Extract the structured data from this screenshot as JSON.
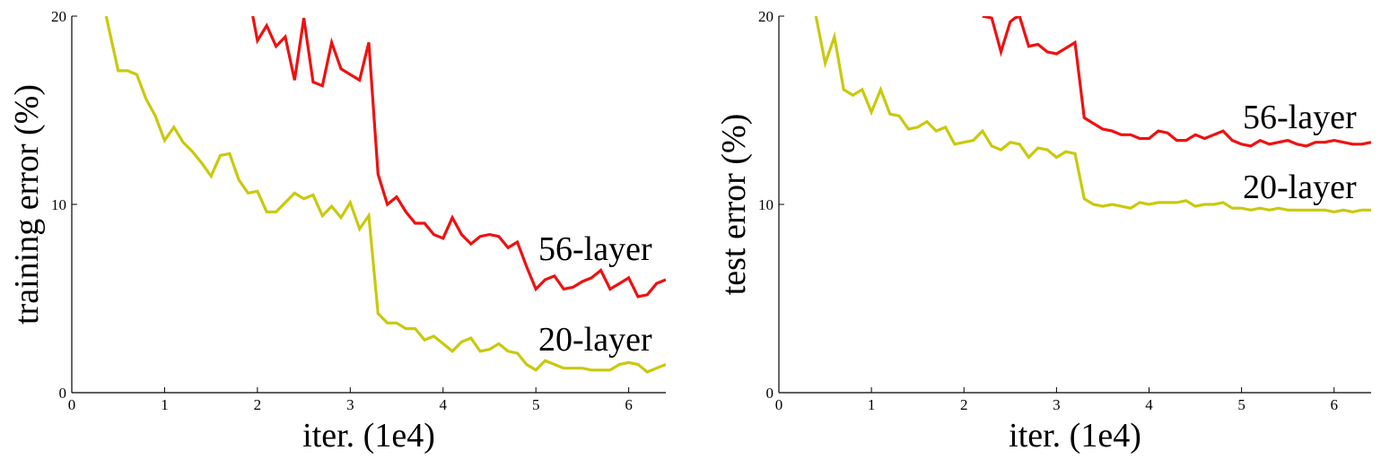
{
  "chart_data": [
    {
      "type": "line",
      "xlabel": "iter. (1e4)",
      "ylabel": "training error (%)",
      "xlim": [
        0,
        6.4
      ],
      "ylim": [
        0,
        20
      ],
      "xticks": [
        "0",
        "1",
        "2",
        "3",
        "4",
        "5",
        "6"
      ],
      "yticks": [
        "0",
        "10",
        "20"
      ],
      "grid": false,
      "series": [
        {
          "name": "56-layer",
          "color": "#ee1111",
          "x": [
            1.95,
            2.0,
            2.1,
            2.2,
            2.3,
            2.4,
            2.5,
            2.6,
            2.7,
            2.8,
            2.9,
            3.0,
            3.1,
            3.2,
            3.3,
            3.4,
            3.5,
            3.6,
            3.7,
            3.8,
            3.9,
            4.0,
            4.1,
            4.2,
            4.3,
            4.4,
            4.5,
            4.6,
            4.7,
            4.8,
            4.9,
            5.0,
            5.1,
            5.2,
            5.3,
            5.4,
            5.5,
            5.6,
            5.7,
            5.8,
            5.9,
            6.0,
            6.1,
            6.2,
            6.3,
            6.4
          ],
          "y": [
            20.0,
            18.7,
            19.5,
            18.4,
            18.9,
            16.6,
            19.9,
            16.5,
            16.3,
            18.6,
            17.2,
            16.9,
            16.6,
            18.6,
            11.6,
            10.0,
            10.4,
            9.6,
            9.0,
            9.0,
            8.4,
            8.2,
            9.3,
            8.4,
            7.9,
            8.3,
            8.4,
            8.3,
            7.7,
            8.0,
            6.7,
            5.5,
            6.0,
            6.2,
            5.5,
            5.6,
            5.9,
            6.1,
            6.5,
            5.5,
            5.8,
            6.1,
            5.1,
            5.2,
            5.8,
            6.0
          ]
        },
        {
          "name": "20-layer",
          "color": "#c9c90e",
          "x": [
            0.37,
            0.5,
            0.6,
            0.7,
            0.8,
            0.9,
            1.0,
            1.1,
            1.2,
            1.3,
            1.4,
            1.5,
            1.6,
            1.7,
            1.8,
            1.9,
            2.0,
            2.1,
            2.2,
            2.3,
            2.4,
            2.5,
            2.6,
            2.7,
            2.8,
            2.9,
            3.0,
            3.1,
            3.2,
            3.3,
            3.4,
            3.5,
            3.6,
            3.7,
            3.8,
            3.9,
            4.0,
            4.1,
            4.2,
            4.3,
            4.4,
            4.5,
            4.6,
            4.7,
            4.8,
            4.9,
            5.0,
            5.1,
            5.2,
            5.3,
            5.4,
            5.5,
            5.6,
            5.7,
            5.8,
            5.9,
            6.0,
            6.1,
            6.2,
            6.3,
            6.4
          ],
          "y": [
            20.0,
            17.1,
            17.1,
            16.9,
            15.6,
            14.7,
            13.4,
            14.1,
            13.3,
            12.8,
            12.2,
            11.5,
            12.6,
            12.7,
            11.3,
            10.6,
            10.7,
            9.6,
            9.6,
            10.1,
            10.6,
            10.3,
            10.5,
            9.4,
            9.9,
            9.3,
            10.1,
            8.7,
            9.4,
            4.2,
            3.7,
            3.7,
            3.4,
            3.4,
            2.8,
            3.0,
            2.6,
            2.2,
            2.7,
            2.9,
            2.2,
            2.3,
            2.6,
            2.2,
            2.1,
            1.5,
            1.2,
            1.7,
            1.5,
            1.3,
            1.3,
            1.3,
            1.2,
            1.2,
            1.2,
            1.5,
            1.6,
            1.5,
            1.1,
            1.3,
            1.5
          ]
        }
      ]
    },
    {
      "type": "line",
      "xlabel": "iter. (1e4)",
      "ylabel": "test error (%)",
      "xlim": [
        0,
        6.4
      ],
      "ylim": [
        0,
        20
      ],
      "xticks": [
        "0",
        "1",
        "2",
        "3",
        "4",
        "5",
        "6"
      ],
      "yticks": [
        "0",
        "10",
        "20"
      ],
      "grid": false,
      "series": [
        {
          "name": "56-layer",
          "color": "#ee1111",
          "x": [
            2.2,
            2.3,
            2.4,
            2.5,
            2.55,
            2.6,
            2.7,
            2.8,
            2.9,
            3.0,
            3.1,
            3.2,
            3.3,
            3.4,
            3.5,
            3.6,
            3.7,
            3.8,
            3.9,
            4.0,
            4.1,
            4.2,
            4.3,
            4.4,
            4.5,
            4.6,
            4.7,
            4.8,
            4.9,
            5.0,
            5.1,
            5.2,
            5.3,
            5.4,
            5.5,
            5.6,
            5.7,
            5.8,
            5.9,
            6.0,
            6.1,
            6.2,
            6.3,
            6.4
          ],
          "y": [
            20.0,
            19.9,
            18.1,
            19.7,
            19.9,
            20.0,
            18.4,
            18.5,
            18.1,
            18.0,
            18.3,
            18.6,
            14.6,
            14.3,
            14.0,
            13.9,
            13.7,
            13.7,
            13.5,
            13.5,
            13.9,
            13.8,
            13.4,
            13.4,
            13.7,
            13.5,
            13.7,
            13.9,
            13.4,
            13.2,
            13.1,
            13.4,
            13.2,
            13.3,
            13.4,
            13.2,
            13.1,
            13.3,
            13.3,
            13.4,
            13.3,
            13.2,
            13.2,
            13.3
          ]
        },
        {
          "name": "20-layer",
          "color": "#c9c90e",
          "x": [
            0.4,
            0.5,
            0.6,
            0.7,
            0.8,
            0.9,
            1.0,
            1.1,
            1.2,
            1.3,
            1.4,
            1.5,
            1.6,
            1.7,
            1.8,
            1.9,
            2.0,
            2.1,
            2.2,
            2.3,
            2.4,
            2.5,
            2.6,
            2.7,
            2.8,
            2.9,
            3.0,
            3.1,
            3.2,
            3.3,
            3.4,
            3.5,
            3.6,
            3.7,
            3.8,
            3.9,
            4.0,
            4.1,
            4.2,
            4.3,
            4.4,
            4.5,
            4.6,
            4.7,
            4.8,
            4.9,
            5.0,
            5.1,
            5.2,
            5.3,
            5.4,
            5.5,
            5.6,
            5.7,
            5.8,
            5.9,
            6.0,
            6.1,
            6.2,
            6.3,
            6.4
          ],
          "y": [
            20.0,
            17.5,
            18.9,
            16.1,
            15.8,
            16.1,
            14.9,
            16.1,
            14.8,
            14.7,
            14.0,
            14.1,
            14.4,
            13.9,
            14.1,
            13.2,
            13.3,
            13.4,
            13.9,
            13.1,
            12.9,
            13.3,
            13.2,
            12.5,
            13.0,
            12.9,
            12.5,
            12.8,
            12.7,
            10.3,
            10.0,
            9.9,
            10.0,
            9.9,
            9.8,
            10.1,
            10.0,
            10.1,
            10.1,
            10.1,
            10.2,
            9.9,
            10.0,
            10.0,
            10.1,
            9.8,
            9.8,
            9.7,
            9.8,
            9.7,
            9.8,
            9.7,
            9.7,
            9.7,
            9.7,
            9.7,
            9.6,
            9.7,
            9.6,
            9.7,
            9.7
          ]
        }
      ]
    }
  ]
}
